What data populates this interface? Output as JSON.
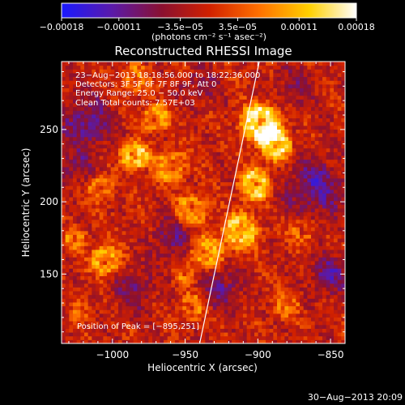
{
  "chart_data": {
    "type": "heatmap",
    "title": "Reconstructed RHESSI Image",
    "xlabel": "Heliocentric X (arcsec)",
    "ylabel": "Heliocentric Y (arcsec)",
    "xlim": [
      -1035,
      -840
    ],
    "ylim": [
      102,
      297
    ],
    "x_ticks": [
      {
        "value": -1000,
        "label": "−1000"
      },
      {
        "value": -950,
        "label": "−950"
      },
      {
        "value": -900,
        "label": "−900"
      },
      {
        "value": -850,
        "label": "−850"
      }
    ],
    "y_ticks": [
      {
        "value": 150,
        "label": "150"
      },
      {
        "value": 200,
        "label": "200"
      },
      {
        "value": 250,
        "label": "250"
      }
    ],
    "colorbar": {
      "min": -0.00018,
      "max": 0.00018,
      "units": "(photons cm⁻² s⁻¹ asec⁻²)",
      "ticks": [
        {
          "value": -0.00018,
          "label": "−0.00018"
        },
        {
          "value": -0.00011,
          "label": "−0.00011"
        },
        {
          "value": -3.5e-05,
          "label": "−3.5e−05"
        },
        {
          "value": 3.5e-05,
          "label": "3.5e−05"
        },
        {
          "value": 0.00011,
          "label": "0.00011"
        },
        {
          "value": 0.00018,
          "label": "0.00018"
        }
      ],
      "colors": [
        "#1a1aff",
        "#5a1aaa",
        "#8a1030",
        "#d02000",
        "#ff7000",
        "#ffd000",
        "#ffffff"
      ]
    },
    "info_lines": [
      "23−Aug−2013 18:18:56.000 to 18:22:36.000",
      "Detectors: 3F 5F 6F 7F 8F 9F, Att 0",
      "Energy Range: 25.0 − 50.0 keV",
      "Clean     Total counts: 7.57E+03"
    ],
    "peak_label": "Position of Peak = [−895,251]",
    "limb": [
      [
        -899,
        297
      ],
      [
        -940,
        102
      ]
    ],
    "sources": [
      {
        "x": -898,
        "y": 255,
        "amp": 1.0,
        "sigma": 14
      },
      {
        "x": -888,
        "y": 240,
        "amp": 0.85,
        "sigma": 12
      },
      {
        "x": -902,
        "y": 212,
        "amp": 0.8,
        "sigma": 12
      },
      {
        "x": -912,
        "y": 180,
        "amp": 0.7,
        "sigma": 14
      },
      {
        "x": -935,
        "y": 165,
        "amp": 0.6,
        "sigma": 12
      },
      {
        "x": -970,
        "y": 258,
        "amp": 0.6,
        "sigma": 10
      },
      {
        "x": -985,
        "y": 232,
        "amp": 0.85,
        "sigma": 10
      },
      {
        "x": -960,
        "y": 225,
        "amp": 0.5,
        "sigma": 12
      },
      {
        "x": -945,
        "y": 195,
        "amp": 0.5,
        "sigma": 12
      },
      {
        "x": -1008,
        "y": 210,
        "amp": 0.45,
        "sigma": 9
      },
      {
        "x": -1005,
        "y": 160,
        "amp": 0.65,
        "sigma": 11
      },
      {
        "x": -1025,
        "y": 175,
        "amp": 0.45,
        "sigma": 8
      },
      {
        "x": -945,
        "y": 128,
        "amp": 0.4,
        "sigma": 10
      },
      {
        "x": -880,
        "y": 130,
        "amp": 0.35,
        "sigma": 10
      },
      {
        "x": -870,
        "y": 180,
        "amp": 0.4,
        "sigma": 9
      },
      {
        "x": -985,
        "y": 285,
        "amp": 0.45,
        "sigma": 10
      },
      {
        "x": -950,
        "y": 150,
        "amp": 0.35,
        "sigma": 8
      },
      {
        "x": -1020,
        "y": 125,
        "amp": 0.3,
        "sigma": 8
      }
    ],
    "sinks": [
      {
        "x": -860,
        "y": 210,
        "amp": 0.55,
        "sigma": 14
      },
      {
        "x": -925,
        "y": 140,
        "amp": 0.45,
        "sigma": 10
      },
      {
        "x": -1018,
        "y": 255,
        "amp": 0.5,
        "sigma": 13
      },
      {
        "x": -960,
        "y": 175,
        "amp": 0.4,
        "sigma": 10
      },
      {
        "x": -985,
        "y": 140,
        "amp": 0.4,
        "sigma": 10
      },
      {
        "x": -850,
        "y": 150,
        "amp": 0.5,
        "sigma": 10
      },
      {
        "x": -875,
        "y": 280,
        "amp": 0.3,
        "sigma": 10
      },
      {
        "x": -1025,
        "y": 225,
        "amp": 0.35,
        "sigma": 8
      },
      {
        "x": -940,
        "y": 280,
        "amp": 0.3,
        "sigma": 9
      }
    ]
  },
  "footer": {
    "timestamp": "30−Aug−2013 20:09"
  }
}
